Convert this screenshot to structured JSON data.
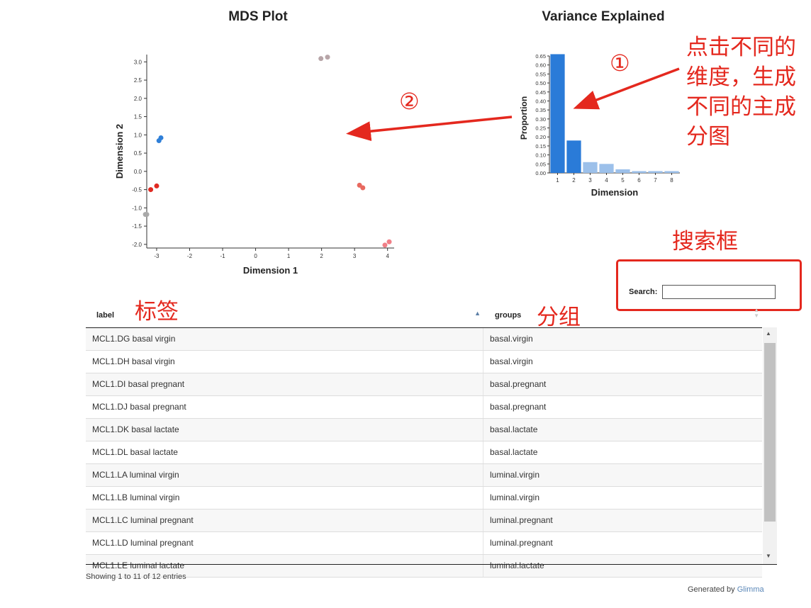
{
  "mds": {
    "title": "MDS Plot",
    "chart_data": {
      "type": "scatter",
      "xlabel": "Dimension 1",
      "ylabel": "Dimension 2",
      "xlim": [
        -3.3,
        4.2
      ],
      "ylim": [
        -2.1,
        3.2
      ],
      "xticks": [
        -3,
        -2,
        -1,
        0,
        1,
        2,
        3,
        4
      ],
      "yticks": [
        -2.0,
        -1.5,
        -1.0,
        -0.5,
        0.0,
        0.5,
        1.0,
        1.5,
        2.0,
        2.5,
        3.0
      ],
      "points": [
        {
          "x": 1.98,
          "y": 3.09,
          "color": "#b7a5a8"
        },
        {
          "x": 2.18,
          "y": 3.13,
          "color": "#b7a5a8"
        },
        {
          "x": -2.87,
          "y": 0.92,
          "color": "#2f7fd8"
        },
        {
          "x": -2.93,
          "y": 0.84,
          "color": "#2f7fd8"
        },
        {
          "x": -3.18,
          "y": -0.5,
          "color": "#e02a22"
        },
        {
          "x": -3.0,
          "y": -0.4,
          "color": "#e02a22"
        },
        {
          "x": -3.34,
          "y": -1.18,
          "color": "#a9a9a9"
        },
        {
          "x": -3.3,
          "y": -1.18,
          "color": "#a9a9a9"
        },
        {
          "x": 3.15,
          "y": -0.38,
          "color": "#e8695f"
        },
        {
          "x": 3.25,
          "y": -0.45,
          "color": "#e8695f"
        },
        {
          "x": 3.92,
          "y": -2.02,
          "color": "#f07f87"
        },
        {
          "x": 4.05,
          "y": -1.93,
          "color": "#f07f87"
        }
      ]
    }
  },
  "variance": {
    "title": "Variance Explained",
    "chart_data": {
      "type": "bar",
      "xlabel": "Dimension",
      "ylabel": "Proportion",
      "categories": [
        "1",
        "2",
        "3",
        "4",
        "5",
        "6",
        "7",
        "8"
      ],
      "values": [
        0.66,
        0.18,
        0.06,
        0.05,
        0.02,
        0.01,
        0.01,
        0.01
      ],
      "ylim": [
        0,
        0.65
      ],
      "yticks": [
        "0.00",
        "0.05",
        "0.10",
        "0.15",
        "0.20",
        "0.25",
        "0.30",
        "0.35",
        "0.40",
        "0.45",
        "0.50",
        "0.55",
        "0.60",
        "0.65"
      ],
      "selected_color": "#2a7bd8",
      "other_color": "#9cc0ea",
      "selected": [
        0,
        1
      ]
    }
  },
  "annotations": {
    "circle1": "①",
    "circle2": "②",
    "note_lines": [
      "点击不同的",
      "维度，生成",
      "不同的主成",
      "分图"
    ],
    "search_box_note": "搜索框",
    "label_note": "标签",
    "groups_note": "分组",
    "color": "#e4281e"
  },
  "search": {
    "label": "Search:",
    "value": ""
  },
  "table": {
    "headers": {
      "label": "label",
      "groups": "groups"
    },
    "rows": [
      {
        "label": "MCL1.DG basal virgin",
        "group": "basal.virgin"
      },
      {
        "label": "MCL1.DH basal virgin",
        "group": "basal.virgin"
      },
      {
        "label": "MCL1.DI basal pregnant",
        "group": "basal.pregnant"
      },
      {
        "label": "MCL1.DJ basal pregnant",
        "group": "basal.pregnant"
      },
      {
        "label": "MCL1.DK basal lactate",
        "group": "basal.lactate"
      },
      {
        "label": "MCL1.DL basal lactate",
        "group": "basal.lactate"
      },
      {
        "label": "MCL1.LA luminal virgin",
        "group": "luminal.virgin"
      },
      {
        "label": "MCL1.LB luminal virgin",
        "group": "luminal.virgin"
      },
      {
        "label": "MCL1.LC luminal pregnant",
        "group": "luminal.pregnant"
      },
      {
        "label": "MCL1.LD luminal pregnant",
        "group": "luminal.pregnant"
      },
      {
        "label": "MCL1.LE luminal lactate",
        "group": "luminal.lactate"
      }
    ]
  },
  "footer": {
    "info": "Showing 1 to 11 of 12 entries",
    "generated_prefix": "Generated by ",
    "generated_link": "Glimma"
  }
}
